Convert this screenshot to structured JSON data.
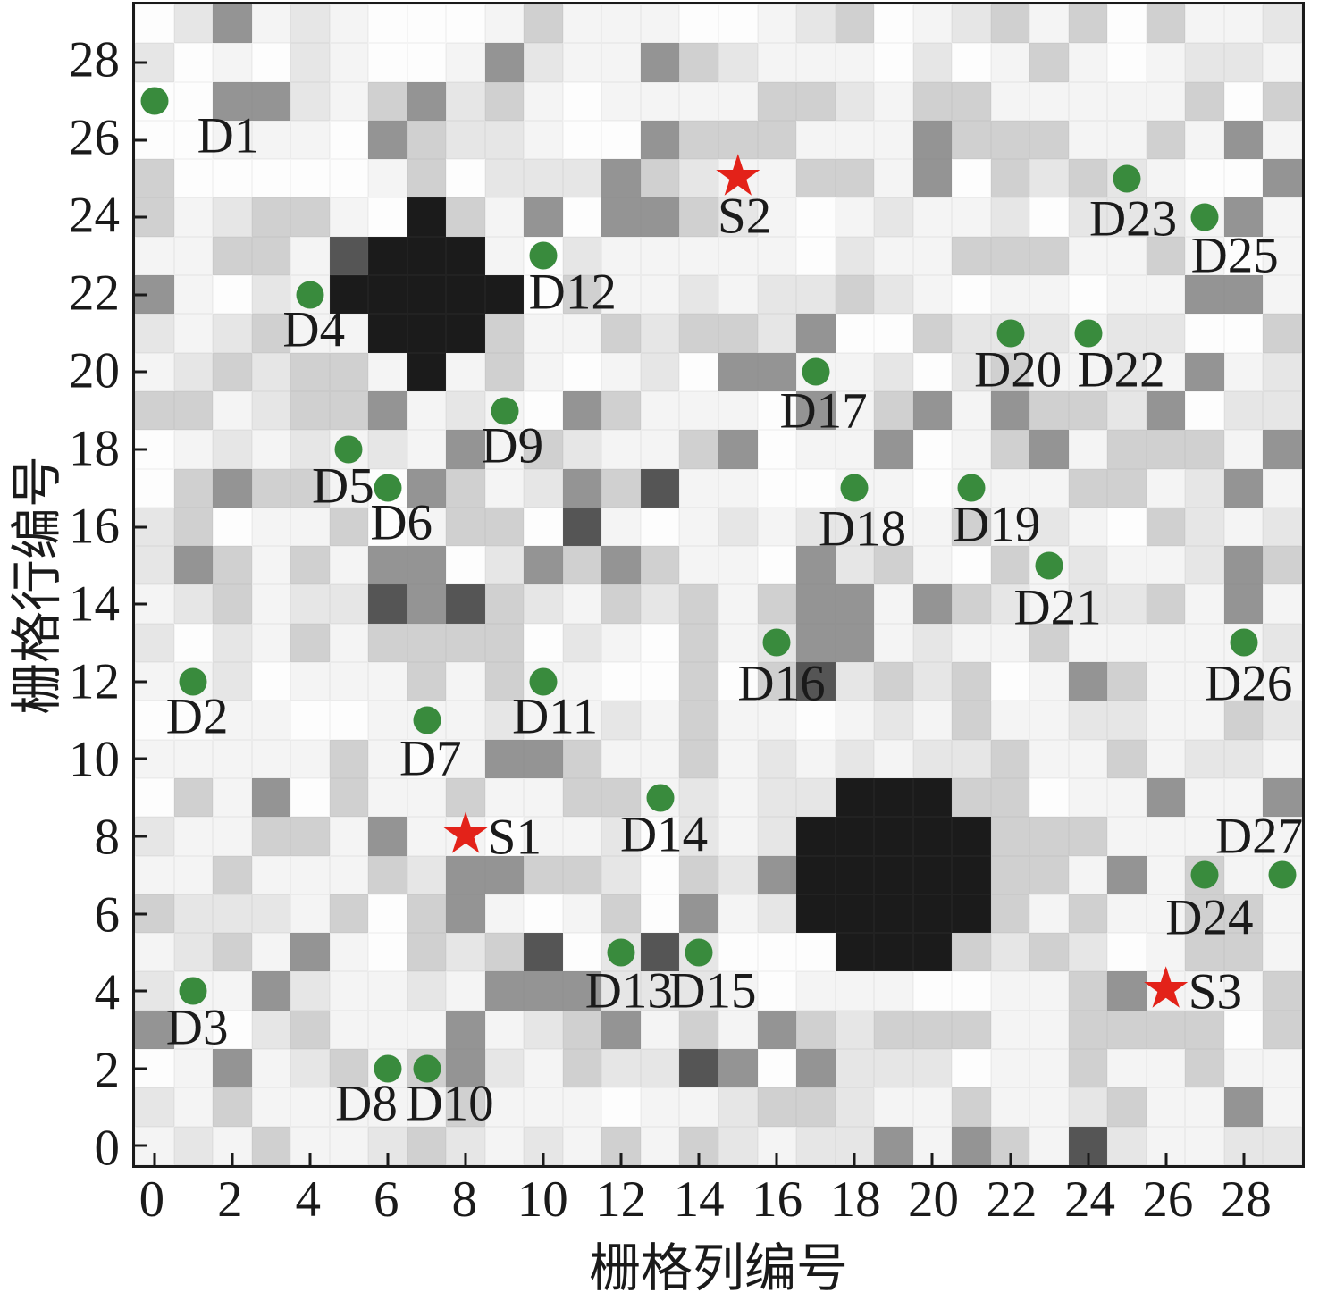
{
  "chart_data": {
    "type": "heatmap",
    "title": "",
    "xlabel": "栅格列编号",
    "ylabel": "栅格行编号",
    "grid_cols": 30,
    "grid_rows": 30,
    "x_range": [
      0,
      29
    ],
    "y_range": [
      0,
      29
    ],
    "x_ticks": [
      0,
      2,
      4,
      6,
      8,
      10,
      12,
      14,
      16,
      18,
      20,
      22,
      24,
      26,
      28
    ],
    "y_ticks": [
      0,
      2,
      4,
      6,
      8,
      10,
      12,
      14,
      16,
      18,
      20,
      22,
      24,
      26,
      28
    ],
    "tick_direction": "in",
    "legend": "none",
    "palette": {
      "0": "#fdfdfd",
      "1": "#f4f4f4",
      "2": "#e6e6e6",
      "3": "#d0d0d0",
      "4": "#949494",
      "5": "#555555",
      "9": "#1b1b1b"
    },
    "cells_rows_top_to_bottom": [
      "024121000131110012301231303112",
      "201021001421143211102013101221",
      "004421342310111133213311111303",
      "001110432210043331114333113141",
      "300000130222432113314032321004",
      "312331093140443210121120222141",
      "113315999102111110211333113101",
      "410219999903112122321011011441",
      "212311999311323324003222122003",
      "123233191310120441120231121412",
      "331233412104311104134143324022",
      "012121214132113401140134133314",
      "034331043124351100110111331241",
      "230113013305101212211312103212",
      "243131440243431104231031211243",
      "123122545321323134414321223141",
      "202131333302103124412113111112",
      "112011131311003035232301431111",
      "001100111211213110121311221132",
      "111113101443113121212231131221",
      "031403113113312122999330114114",
      "211331411011202129999933311111",
      "113111324433203249999933141311",
      "322213034101304129999931311331",
      "123141032350252000999323201331",
      "211421121444222101110011341113",
      "410231114123413143233311333303",
      "014123134213225404222011311311",
      "213111113111011233211311231141",
      "121311232121313212241431521122"
    ],
    "obstacle_note": "cells coded 9 are solid black obstacle blobs: one around cols 5-9 rows 20-24, one around cols 17-21 rows 5-9",
    "colors": {
      "detector": "#398b3d",
      "source": "#e32219",
      "text": "#1a1a1a"
    },
    "detectors": [
      {
        "id": "D1",
        "col": 0,
        "row": 27,
        "ldx": 1.9,
        "ldy": 0.9
      },
      {
        "id": "D2",
        "col": 1,
        "row": 12,
        "ldx": 0.1,
        "ldy": 0.9
      },
      {
        "id": "D3",
        "col": 1,
        "row": 4,
        "ldx": 0.1,
        "ldy": 0.95
      },
      {
        "id": "D4",
        "col": 4,
        "row": 22,
        "ldx": 0.1,
        "ldy": 0.9
      },
      {
        "id": "D5",
        "col": 5,
        "row": 18,
        "ldx": -0.15,
        "ldy": 0.95
      },
      {
        "id": "D6",
        "col": 6,
        "row": 17,
        "ldx": 0.35,
        "ldy": 0.9
      },
      {
        "id": "D7",
        "col": 7,
        "row": 11,
        "ldx": 0.1,
        "ldy": 1.0
      },
      {
        "id": "D8",
        "col": 6,
        "row": 2,
        "ldx": -0.55,
        "ldy": 0.9
      },
      {
        "id": "D9",
        "col": 9,
        "row": 19,
        "ldx": 0.2,
        "ldy": 0.9
      },
      {
        "id": "D10",
        "col": 7,
        "row": 2,
        "ldx": 0.6,
        "ldy": 0.9
      },
      {
        "id": "D11",
        "col": 10,
        "row": 12,
        "ldx": 0.3,
        "ldy": 0.9
      },
      {
        "id": "D12",
        "col": 10,
        "row": 23,
        "ldx": 0.75,
        "ldy": 0.93
      },
      {
        "id": "D13",
        "col": 12,
        "row": 5,
        "ldx": 0.2,
        "ldy": 1.0
      },
      {
        "id": "D14",
        "col": 13,
        "row": 9,
        "ldx": 0.1,
        "ldy": 0.95
      },
      {
        "id": "D15",
        "col": 14,
        "row": 5,
        "ldx": 0.35,
        "ldy": 1.0
      },
      {
        "id": "D16",
        "col": 16,
        "row": 13,
        "ldx": 0.12,
        "ldy": 1.05
      },
      {
        "id": "D17",
        "col": 17,
        "row": 20,
        "ldx": 0.2,
        "ldy": 1.0
      },
      {
        "id": "D18",
        "col": 18,
        "row": 17,
        "ldx": 0.2,
        "ldy": 1.05
      },
      {
        "id": "D19",
        "col": 21,
        "row": 17,
        "ldx": 0.65,
        "ldy": 0.95
      },
      {
        "id": "D20",
        "col": 22,
        "row": 21,
        "ldx": 0.2,
        "ldy": 0.95
      },
      {
        "id": "D21",
        "col": 23,
        "row": 15,
        "ldx": 0.22,
        "ldy": 1.1
      },
      {
        "id": "D22",
        "col": 24,
        "row": 21,
        "ldx": 0.85,
        "ldy": 0.95
      },
      {
        "id": "D23",
        "col": 25,
        "row": 25,
        "ldx": 0.16,
        "ldy": 1.05
      },
      {
        "id": "D24",
        "col": 27,
        "row": 7,
        "ldx": 0.12,
        "ldy": 1.1
      },
      {
        "id": "D25",
        "col": 27,
        "row": 24,
        "ldx": 0.77,
        "ldy": 1.0
      },
      {
        "id": "D26",
        "col": 28,
        "row": 13,
        "ldx": 0.13,
        "ldy": 1.05
      },
      {
        "id": "D27",
        "col": 29,
        "row": 7,
        "ldx": -0.6,
        "ldy": -1.0
      }
    ],
    "sources": [
      {
        "id": "S1",
        "col": 8,
        "row": 8,
        "ldx": 1.26,
        "ldy": 0.03
      },
      {
        "id": "S2",
        "col": 15,
        "row": 25,
        "ldx": 0.17,
        "ldy": 0.97
      },
      {
        "id": "S3",
        "col": 26,
        "row": 4,
        "ldx": 1.27,
        "ldy": 0.02
      }
    ],
    "marker_glyphs": {
      "detector": "circle",
      "source": "star"
    }
  }
}
